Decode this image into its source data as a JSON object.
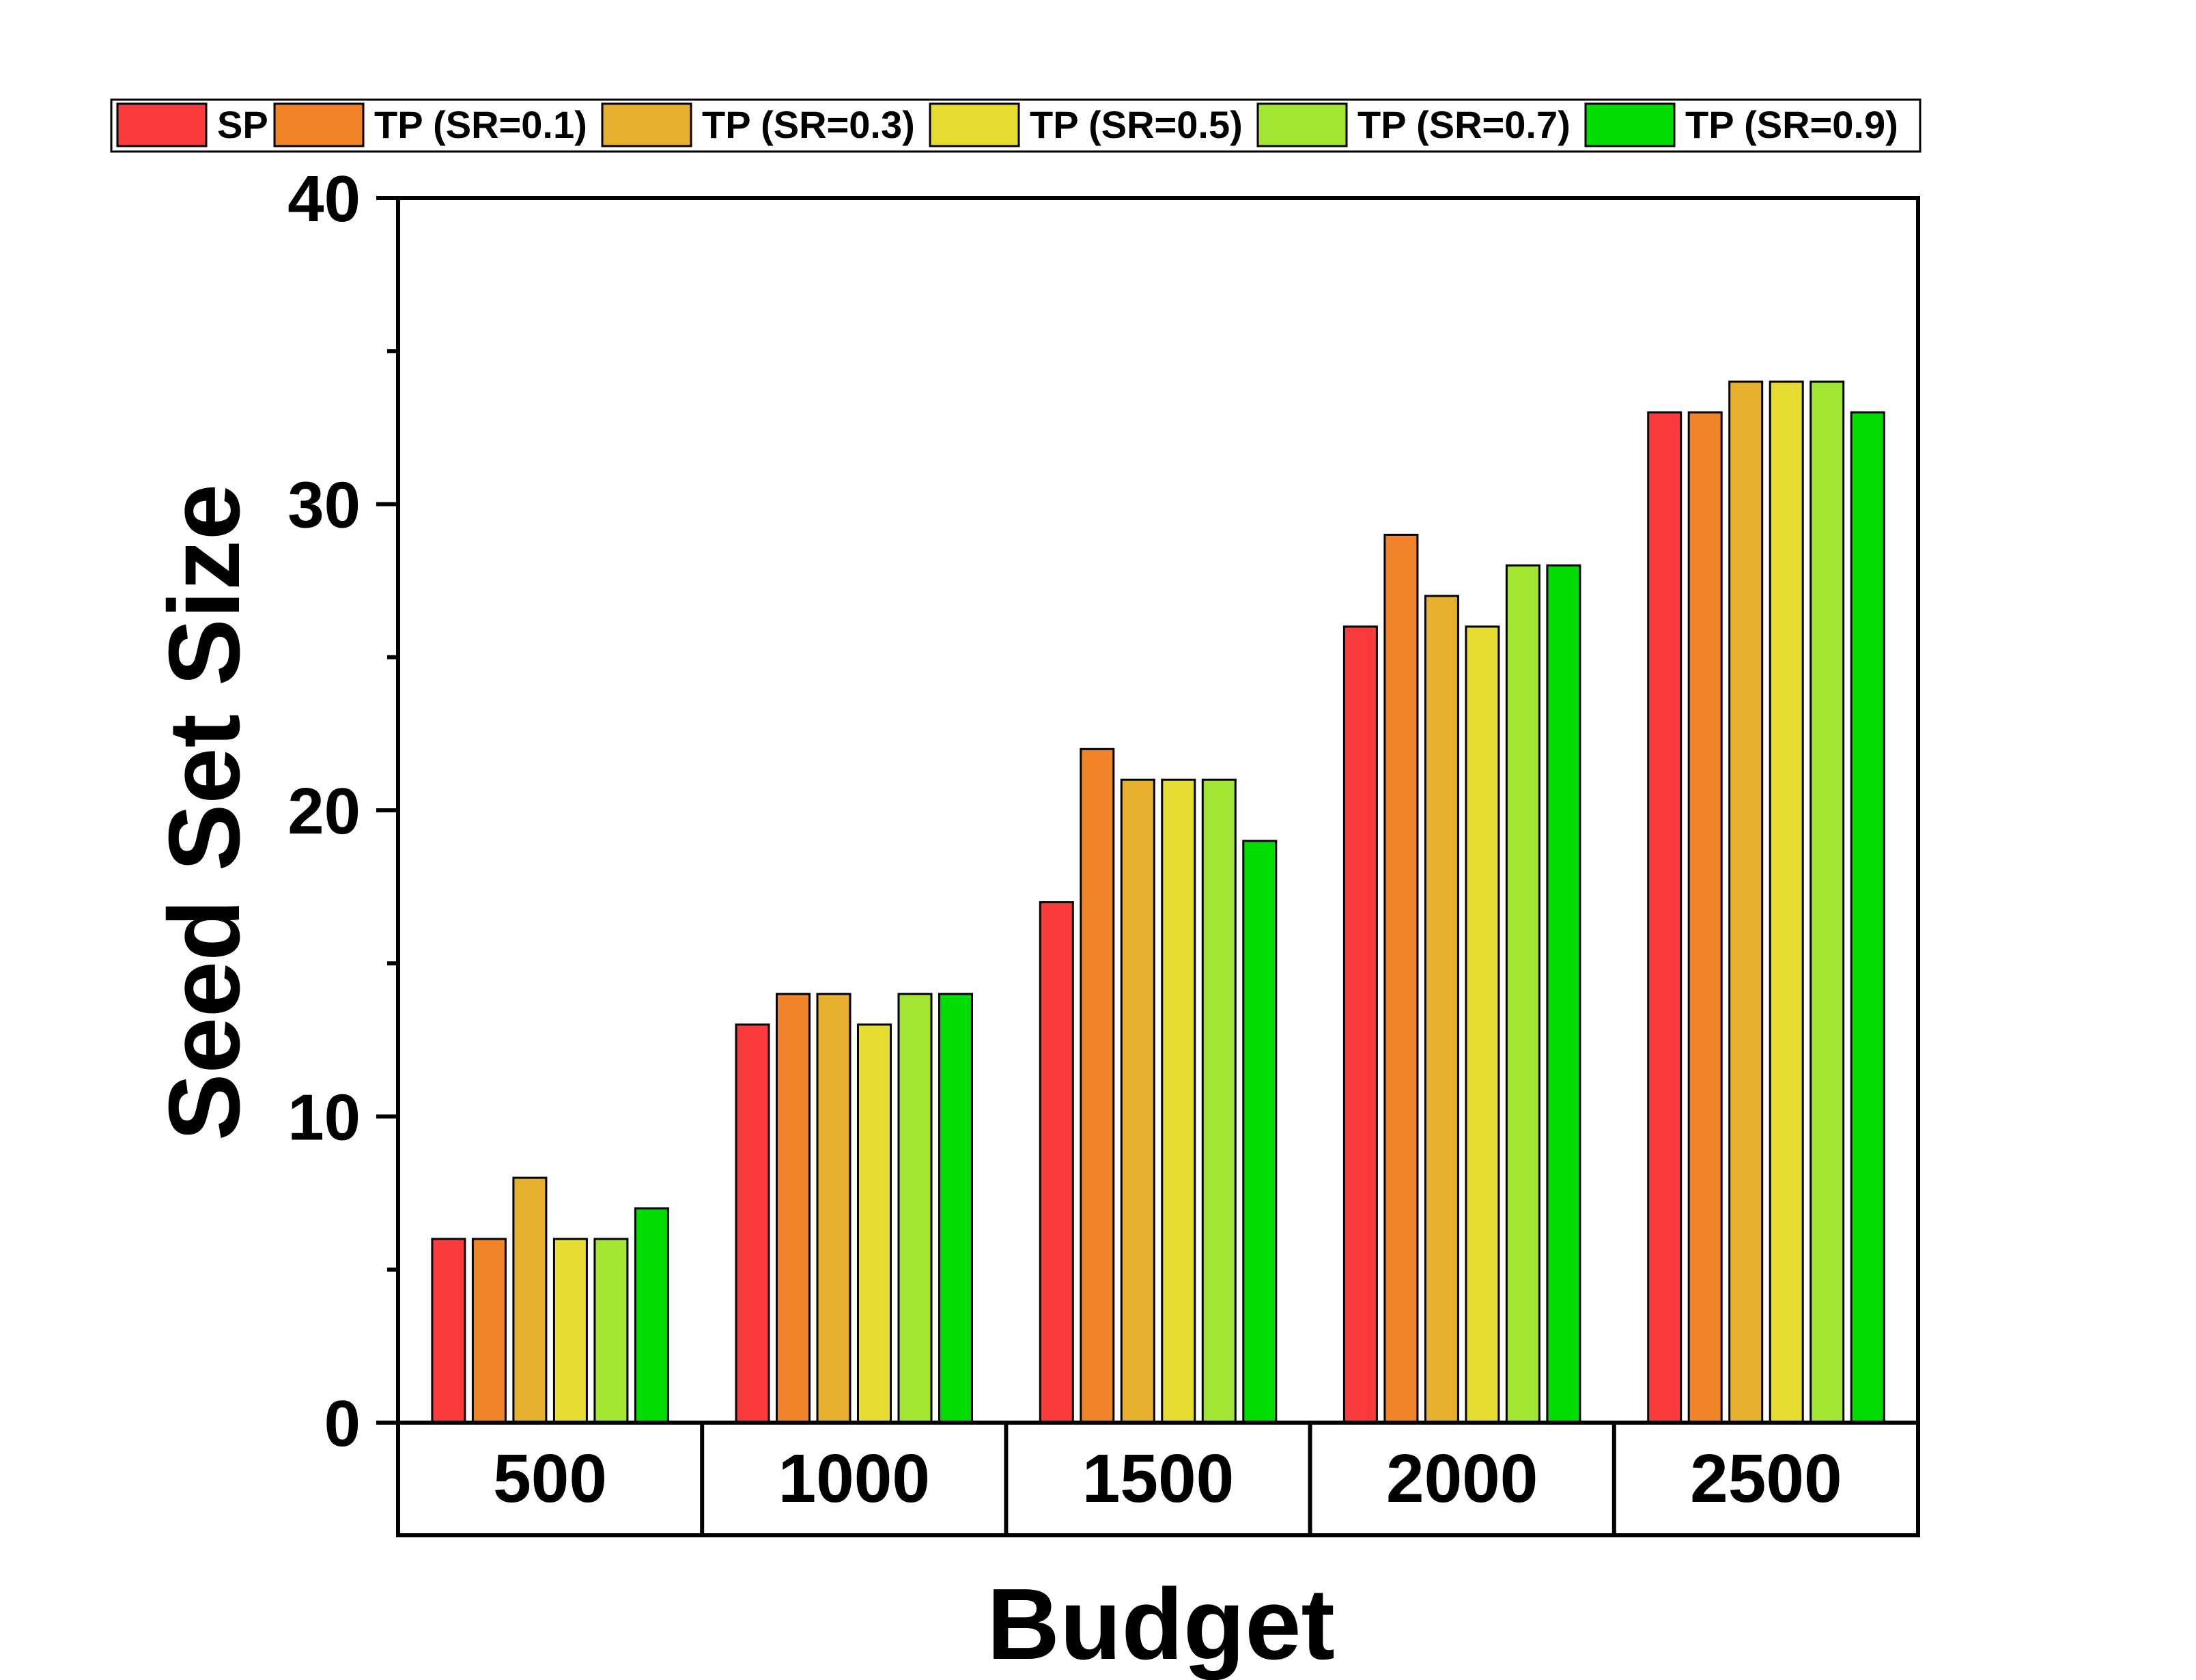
{
  "chart_data": {
    "type": "bar",
    "title": "",
    "xlabel": "Budget",
    "ylabel": "Seed Set Size",
    "categories": [
      "500",
      "1000",
      "1500",
      "2000",
      "2500"
    ],
    "ylim": [
      0,
      40
    ],
    "yticks": [
      0,
      10,
      20,
      30,
      40
    ],
    "yticks_minor": [
      5,
      15,
      25,
      35
    ],
    "ytick_labels": [
      "0",
      "10",
      "20",
      "30",
      "40"
    ],
    "grid": false,
    "legend_position": "top",
    "series": [
      {
        "name": "SP",
        "color": "#fa3c3c",
        "values": [
          6,
          13,
          17,
          26,
          33
        ]
      },
      {
        "name": "TP (SR=0.1)",
        "color": "#f08228",
        "values": [
          6,
          14,
          22,
          29,
          33
        ]
      },
      {
        "name": "TP (SR=0.3)",
        "color": "#e6af2d",
        "values": [
          8,
          14,
          21,
          27,
          34
        ]
      },
      {
        "name": "TP (SR=0.5)",
        "color": "#e6dc32",
        "values": [
          6,
          13,
          21,
          26,
          34
        ]
      },
      {
        "name": "TP (SR=0.7)",
        "color": "#a0e632",
        "values": [
          6,
          14,
          21,
          28,
          34
        ]
      },
      {
        "name": "TP (SR=0.9)",
        "color": "#00dc00",
        "values": [
          7,
          14,
          19,
          28,
          33
        ]
      }
    ]
  }
}
